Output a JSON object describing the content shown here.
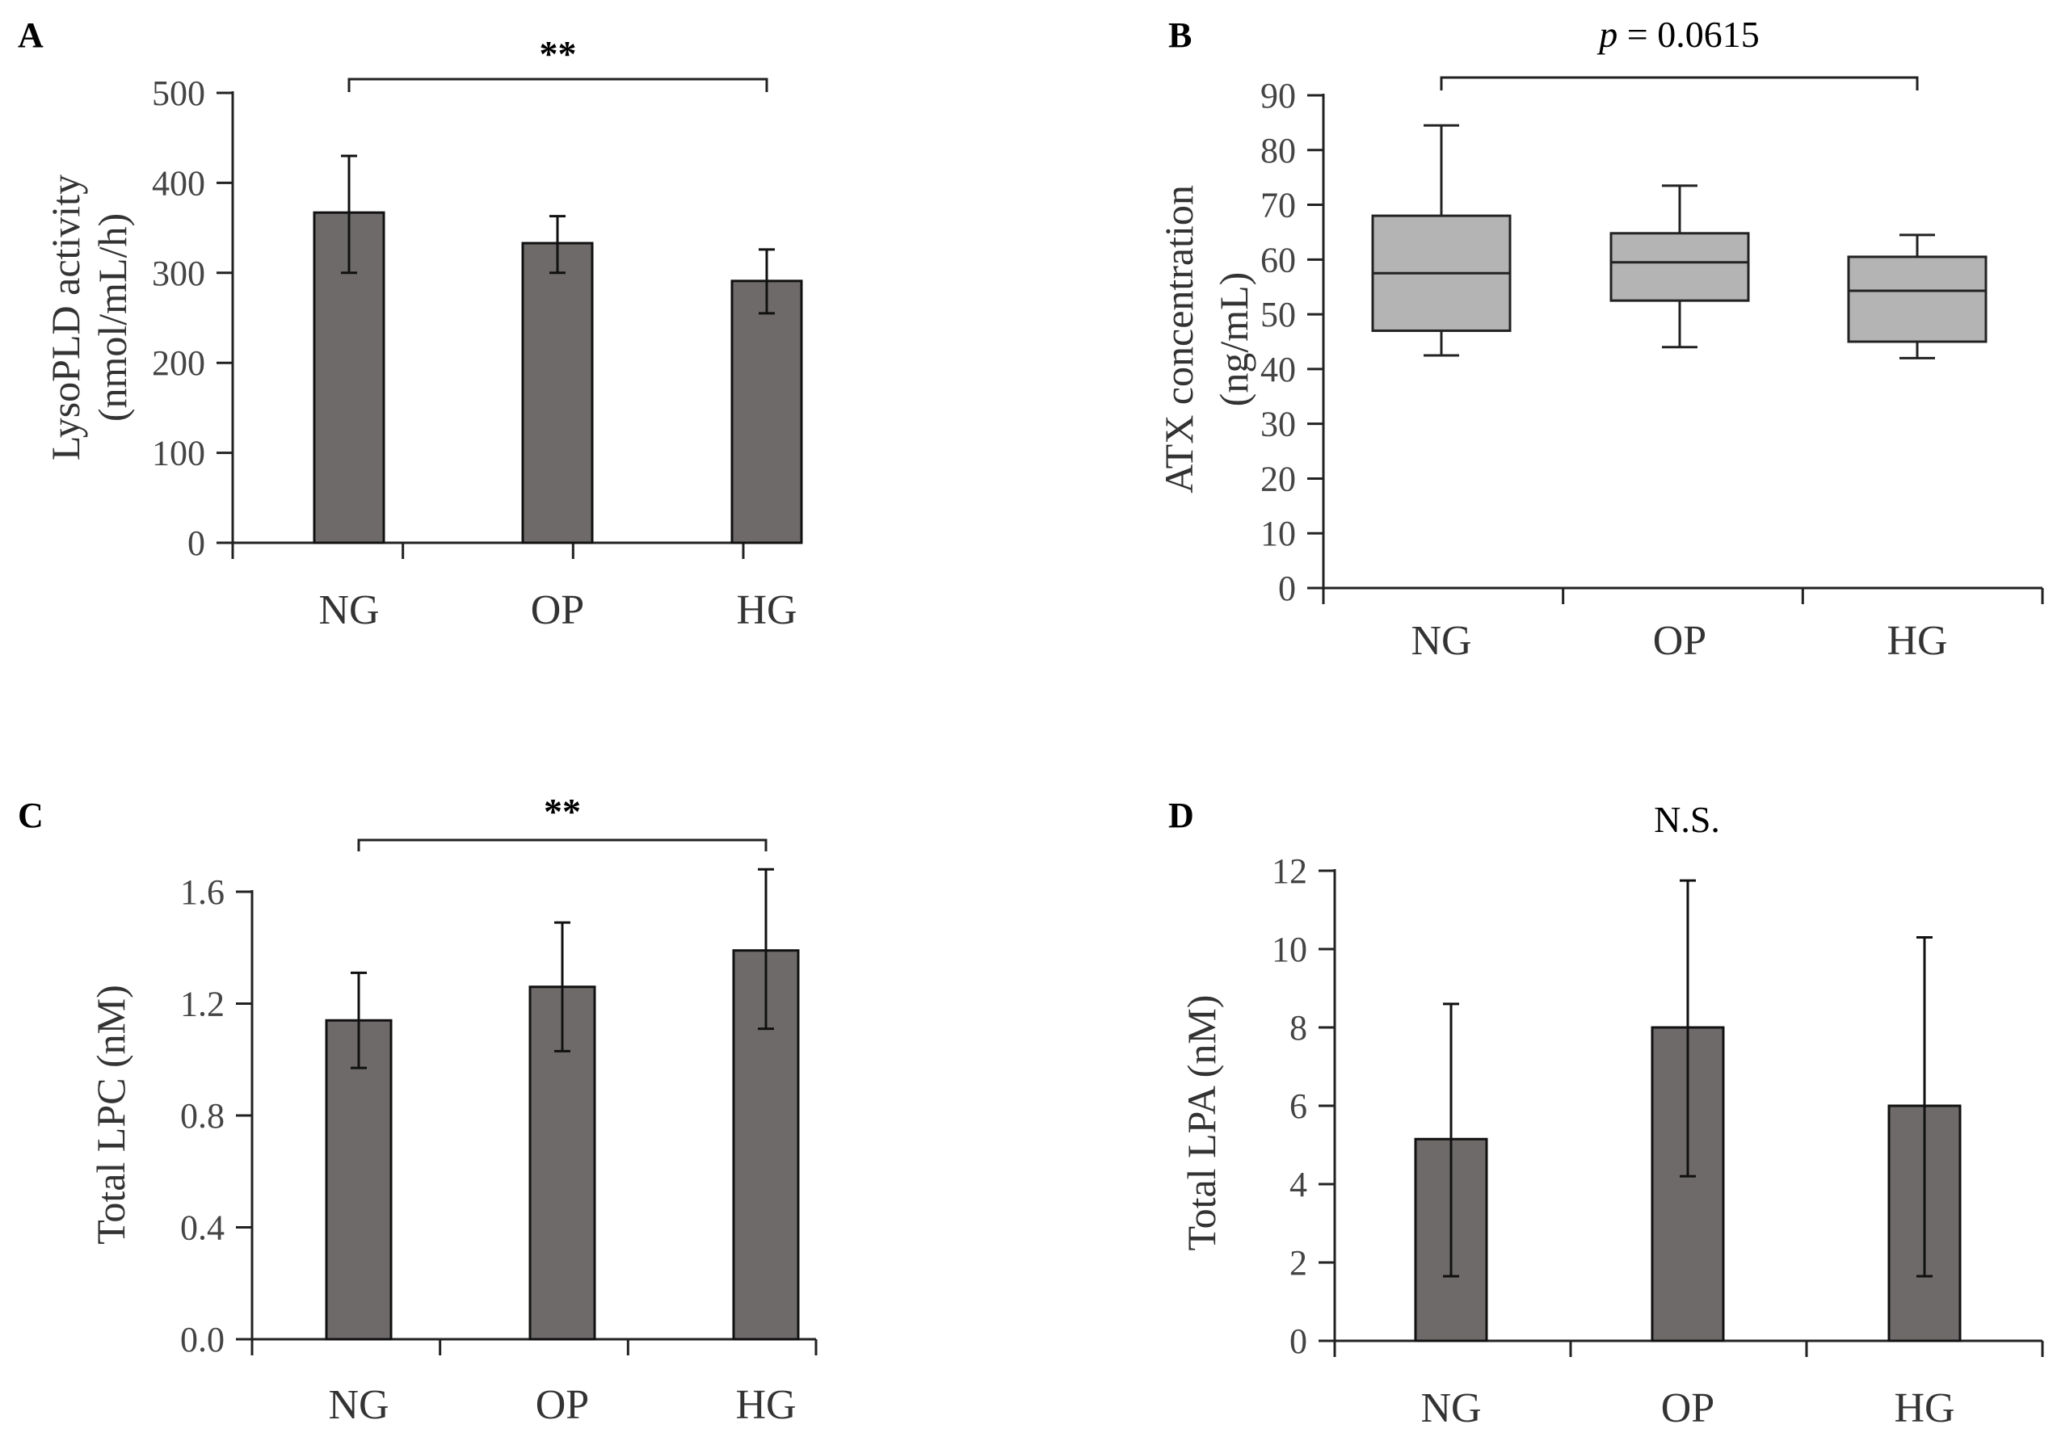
{
  "chart_data": [
    {
      "panel": "A",
      "type": "bar",
      "categories": [
        "NG",
        "OP",
        "HG"
      ],
      "values": [
        367,
        333,
        291
      ],
      "errors_upper": [
        430,
        363,
        326
      ],
      "errors_lower": [
        300,
        300,
        255
      ],
      "ylabel_line1": "LysoPLD activity",
      "ylabel_line2": "(nmol/mL/h)",
      "ylim": [
        0,
        500
      ],
      "yticks": [
        "0",
        "100",
        "200",
        "300",
        "400",
        "500"
      ],
      "annotation": "**",
      "bar_color": "#6f6a6a"
    },
    {
      "panel": "B",
      "type": "box",
      "categories": [
        "NG",
        "OP",
        "HG"
      ],
      "boxes": [
        {
          "min": 42.5,
          "q1": 47,
          "median": 57.5,
          "q3": 68,
          "max": 84.5
        },
        {
          "min": 44,
          "q1": 52.5,
          "median": 59.5,
          "q3": 64.8,
          "max": 73.5
        },
        {
          "min": 42,
          "q1": 45,
          "median": 54.3,
          "q3": 60.5,
          "max": 64.5
        }
      ],
      "ylabel_line1": "ATX concentration",
      "ylabel_line2": "(ng/mL)",
      "ylim": [
        0,
        90
      ],
      "yticks": [
        "0",
        "10",
        "20",
        "30",
        "40",
        "50",
        "60",
        "70",
        "80",
        "90"
      ],
      "annotation_italic": "p",
      "annotation_rest": " = 0.0615",
      "box_color": "#b4b4b4"
    },
    {
      "panel": "C",
      "type": "bar",
      "categories": [
        "NG",
        "OP",
        "HG"
      ],
      "values": [
        1.14,
        1.26,
        1.39
      ],
      "errors_upper": [
        1.31,
        1.49,
        1.68
      ],
      "errors_lower": [
        0.97,
        1.03,
        1.11
      ],
      "ylabel_line1": "Total LPC (nM)",
      "ylim": [
        0,
        1.6
      ],
      "yticks": [
        "0.0",
        "0.4",
        "0.8",
        "1.2",
        "1.6"
      ],
      "annotation": "**",
      "bar_color": "#6f6a6a"
    },
    {
      "panel": "D",
      "type": "bar",
      "categories": [
        "NG",
        "OP",
        "HG"
      ],
      "values": [
        5.15,
        8.0,
        6.0
      ],
      "errors_upper": [
        8.6,
        11.75,
        10.3
      ],
      "errors_lower": [
        1.65,
        4.2,
        1.65
      ],
      "ylabel_line1": "Total LPA (nM)",
      "ylim": [
        0,
        12
      ],
      "yticks": [
        "0",
        "2",
        "4",
        "6",
        "8",
        "10",
        "12"
      ],
      "annotation": "N.S.",
      "bar_color": "#6f6a6a"
    }
  ]
}
